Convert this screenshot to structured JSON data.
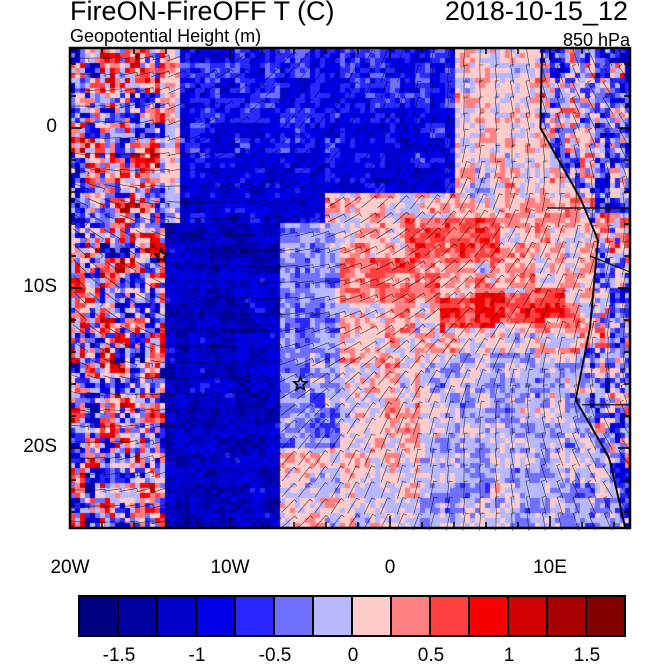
{
  "header": {
    "title": "FireON-FireOFF T (C)",
    "date": "2018-10-15_12",
    "subtitle": "Geopotential Height (m)",
    "level": "850 hPa"
  },
  "chart_data": {
    "type": "heatmap",
    "title": "FireON-FireOFF T (C)",
    "variable_contours": "Geopotential Height (m)",
    "lon_range": [
      -20,
      15
    ],
    "lat_range": [
      -25,
      5
    ],
    "x_ticks": [
      {
        "value": -20,
        "label": "20W"
      },
      {
        "value": -10,
        "label": "10W"
      },
      {
        "value": 0,
        "label": "0"
      },
      {
        "value": 10,
        "label": "10E"
      }
    ],
    "y_ticks": [
      {
        "value": 0,
        "label": "0"
      },
      {
        "value": -10,
        "label": "10S"
      },
      {
        "value": -20,
        "label": "20S"
      }
    ],
    "colorbar": {
      "levels": [
        -1.5,
        -1.25,
        -1,
        -0.75,
        -0.5,
        -0.25,
        0,
        0.25,
        0.5,
        0.75,
        1,
        1.25,
        1.5
      ],
      "labels": [
        {
          "value": -1.5,
          "label": "-1.5"
        },
        {
          "value": -1,
          "label": "-1"
        },
        {
          "value": -0.5,
          "label": "-0.5"
        },
        {
          "value": 0,
          "label": "0"
        },
        {
          "value": 0.5,
          "label": "0.5"
        },
        {
          "value": 1,
          "label": "1"
        },
        {
          "value": 1.5,
          "label": "1.5"
        }
      ],
      "colors": [
        "#000080",
        "#0000a0",
        "#0000c8",
        "#0000e8",
        "#2828ff",
        "#7070ff",
        "#b8b8ff",
        "#ffcccc",
        "#ff8080",
        "#ff4040",
        "#f80000",
        "#d00000",
        "#a80000",
        "#800000"
      ]
    },
    "markers": [
      {
        "type": "star",
        "lon": -14.3,
        "lat": -8
      },
      {
        "type": "star",
        "lon": -5.6,
        "lat": -16
      }
    ]
  }
}
